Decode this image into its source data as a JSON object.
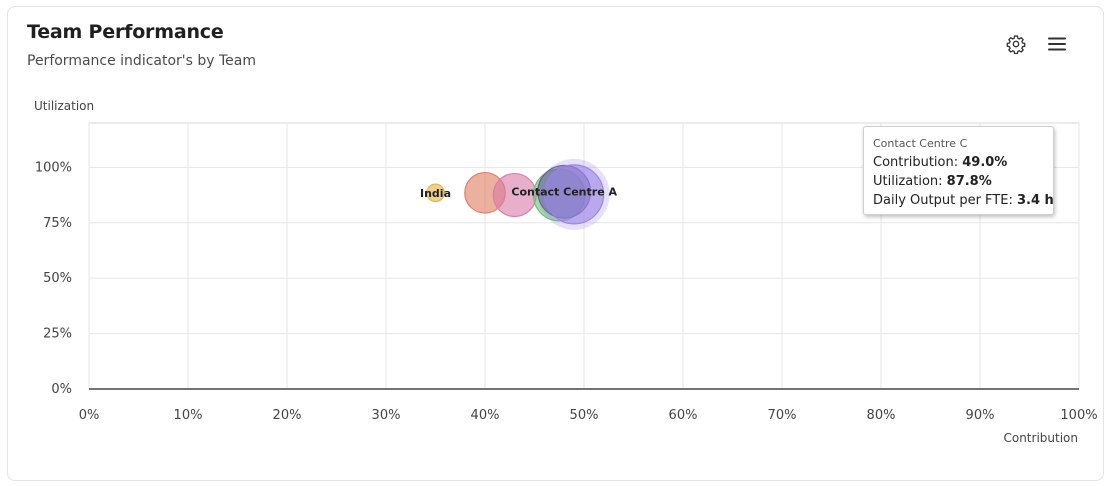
{
  "header": {
    "title": "Team Performance",
    "subtitle": "Performance indicator's by Team"
  },
  "toolbar": {
    "settings_icon": "gear-icon",
    "menu_icon": "hamburger-menu-icon"
  },
  "chart_data": {
    "type": "scatter",
    "variant": "bubble",
    "ylabel": "Utilization",
    "xlabel": "Contribution",
    "xlim": [
      0,
      100
    ],
    "ylim": [
      0,
      120
    ],
    "x_ticks": [
      "0%",
      "10%",
      "20%",
      "30%",
      "40%",
      "50%",
      "60%",
      "70%",
      "80%",
      "90%",
      "100%"
    ],
    "y_ticks": [
      "0%",
      "25%",
      "50%",
      "75%",
      "100%"
    ],
    "grid": true,
    "points": [
      {
        "label": "India",
        "x": 35.0,
        "y": 88.5,
        "size": 0.3,
        "color": "#e3b341",
        "show_label": true
      },
      {
        "label": "",
        "x": 40.0,
        "y": 88.5,
        "size": 1.6,
        "color": "#e07b5f",
        "show_label": false
      },
      {
        "label": "",
        "x": 43.0,
        "y": 87.5,
        "size": 1.8,
        "color": "#d97aa6",
        "show_label": false
      },
      {
        "label": "",
        "x": 47.5,
        "y": 87.5,
        "size": 2.6,
        "color": "#6bbf73",
        "show_label": false
      },
      {
        "label": "Contact Centre A",
        "x": 48.0,
        "y": 89.0,
        "size": 2.7,
        "color": "#5a5a8c",
        "show_label": true
      },
      {
        "label": "Contact Centre C",
        "x": 49.0,
        "y": 87.8,
        "size": 3.4,
        "color": "#9b82e6",
        "show_label": false,
        "highlighted": true
      }
    ]
  },
  "tooltip": {
    "title": "Contact Centre C",
    "contribution_label": "Contribution: ",
    "contribution_value": "49.0%",
    "utilization_label": "Utilization: ",
    "utilization_value": "87.8%",
    "output_label": "Daily Output per FTE: ",
    "output_value": "3.4 h"
  }
}
